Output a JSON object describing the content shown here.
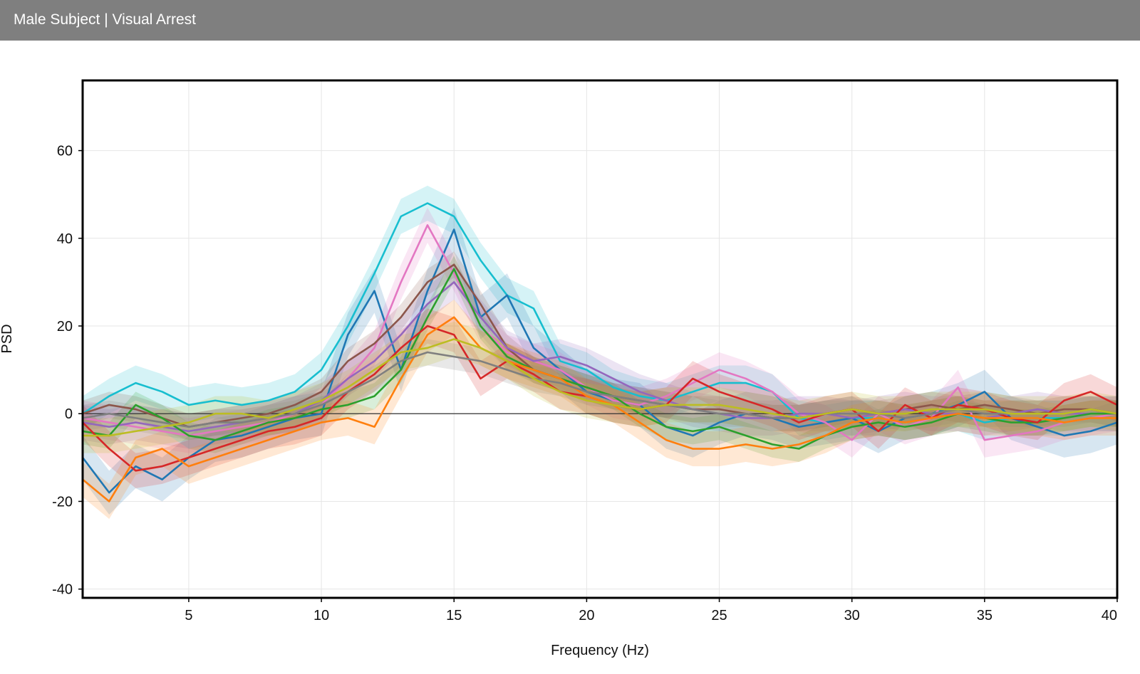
{
  "header": {
    "title": "Male Subject | Visual Arrest",
    "background": "#7f7f7f"
  },
  "chart_data": {
    "type": "line",
    "title": "",
    "xlabel": "Frequency (Hz)",
    "ylabel": "PSD",
    "xlim": [
      1,
      40
    ],
    "ylim": [
      -42,
      76
    ],
    "xticks": [
      5,
      10,
      15,
      20,
      25,
      30,
      35,
      40
    ],
    "yticks": [
      -40,
      -20,
      0,
      20,
      40,
      60
    ],
    "grid": true,
    "zero_line": true,
    "legend": "none",
    "bands": "shaded variability band around each series",
    "x": [
      1,
      2,
      3,
      4,
      5,
      6,
      7,
      8,
      9,
      10,
      11,
      12,
      13,
      14,
      15,
      16,
      17,
      18,
      19,
      20,
      21,
      22,
      23,
      24,
      25,
      26,
      27,
      28,
      29,
      30,
      31,
      32,
      33,
      34,
      35,
      36,
      37,
      38,
      39,
      40
    ],
    "series": [
      {
        "color": "#17becf",
        "band": 4,
        "values": [
          0,
          4,
          7,
          5,
          2,
          3,
          2,
          3,
          5,
          10,
          20,
          32,
          45,
          48,
          45,
          35,
          27,
          24,
          12,
          10,
          6,
          4,
          3,
          5,
          7,
          7,
          5,
          -1,
          -2,
          -1,
          -1,
          -2,
          -1,
          0,
          -2,
          -1,
          -1,
          -1,
          0,
          0
        ]
      },
      {
        "color": "#1f77b4",
        "band": 5,
        "values": [
          -10,
          -18,
          -12,
          -15,
          -10,
          -6,
          -5,
          -3,
          -1,
          0,
          18,
          28,
          10,
          28,
          42,
          22,
          27,
          15,
          10,
          5,
          3,
          2,
          -3,
          -5,
          -2,
          0,
          -1,
          -3,
          -2,
          -1,
          -4,
          -1,
          0,
          2,
          5,
          -1,
          -3,
          -5,
          -4,
          -2
        ]
      },
      {
        "color": "#e377c2",
        "band": 4,
        "values": [
          -1,
          -2,
          -3,
          -4,
          -5,
          -4,
          -3,
          -2,
          0,
          2,
          8,
          15,
          30,
          43,
          32,
          20,
          14,
          12,
          10,
          6,
          3,
          2,
          4,
          7,
          10,
          8,
          5,
          0,
          -2,
          -6,
          0,
          -3,
          -1,
          6,
          -6,
          -5,
          -4,
          -2,
          -1,
          0
        ]
      },
      {
        "color": "#8c564b",
        "band": 3,
        "values": [
          0,
          2,
          1,
          -1,
          -3,
          -2,
          -1,
          0,
          2,
          5,
          12,
          16,
          22,
          30,
          34,
          25,
          15,
          10,
          8,
          6,
          4,
          3,
          2,
          1,
          1,
          0,
          -1,
          -1,
          0,
          1,
          0,
          1,
          2,
          1,
          2,
          1,
          0,
          1,
          1,
          0
        ]
      },
      {
        "color": "#9467bd",
        "band": 4,
        "values": [
          -2,
          -3,
          -2,
          -3,
          -4,
          -3,
          -2,
          -1,
          0,
          3,
          8,
          12,
          18,
          25,
          30,
          22,
          15,
          12,
          13,
          11,
          8,
          5,
          3,
          1,
          0,
          -1,
          -1,
          0,
          0,
          -1,
          0,
          1,
          0,
          0,
          -1,
          0,
          1,
          0,
          0,
          0
        ]
      },
      {
        "color": "#2ca02c",
        "band": 3,
        "values": [
          -4,
          -5,
          2,
          -1,
          -5,
          -6,
          -4,
          -2,
          -1,
          1,
          2,
          4,
          10,
          22,
          33,
          20,
          13,
          10,
          8,
          6,
          4,
          0,
          -3,
          -4,
          -3,
          -5,
          -7,
          -8,
          -5,
          -3,
          -2,
          -3,
          -2,
          0,
          -1,
          -2,
          -2,
          -1,
          0,
          0
        ]
      },
      {
        "color": "#d62728",
        "band": 4,
        "values": [
          -2,
          -8,
          -13,
          -12,
          -10,
          -8,
          -6,
          -4,
          -3,
          -1,
          5,
          9,
          15,
          20,
          18,
          8,
          12,
          9,
          5,
          4,
          2,
          1,
          2,
          8,
          5,
          3,
          1,
          -2,
          0,
          1,
          -4,
          2,
          -1,
          2,
          1,
          -1,
          -2,
          3,
          5,
          2
        ]
      },
      {
        "color": "#ff7f0e",
        "band": 4,
        "values": [
          -15,
          -20,
          -10,
          -8,
          -12,
          -10,
          -8,
          -6,
          -4,
          -2,
          -1,
          -3,
          8,
          18,
          22,
          15,
          12,
          10,
          8,
          4,
          2,
          -2,
          -6,
          -8,
          -8,
          -7,
          -8,
          -7,
          -5,
          -2,
          -1,
          -2,
          -1,
          0,
          -1,
          -1,
          -1,
          -2,
          -1,
          -1
        ]
      },
      {
        "color": "#7f7f7f",
        "band": 3,
        "values": [
          -1,
          0,
          -1,
          -2,
          -3,
          -2,
          -2,
          -1,
          0,
          2,
          5,
          8,
          12,
          14,
          13,
          12,
          10,
          8,
          7,
          5,
          4,
          3,
          2,
          1,
          0,
          0,
          -1,
          -1,
          0,
          0,
          0,
          -1,
          0,
          1,
          0,
          0,
          0,
          0,
          1,
          0
        ]
      },
      {
        "color": "#bcbd22",
        "band": 4,
        "values": [
          -5,
          -5,
          -4,
          -3,
          -2,
          0,
          0,
          -1,
          1,
          3,
          6,
          10,
          14,
          15,
          17,
          15,
          12,
          8,
          5,
          3,
          2,
          1,
          2,
          2,
          2,
          1,
          0,
          -1,
          0,
          1,
          0,
          0,
          1,
          1,
          1,
          0,
          0,
          0,
          1,
          0
        ]
      }
    ]
  }
}
